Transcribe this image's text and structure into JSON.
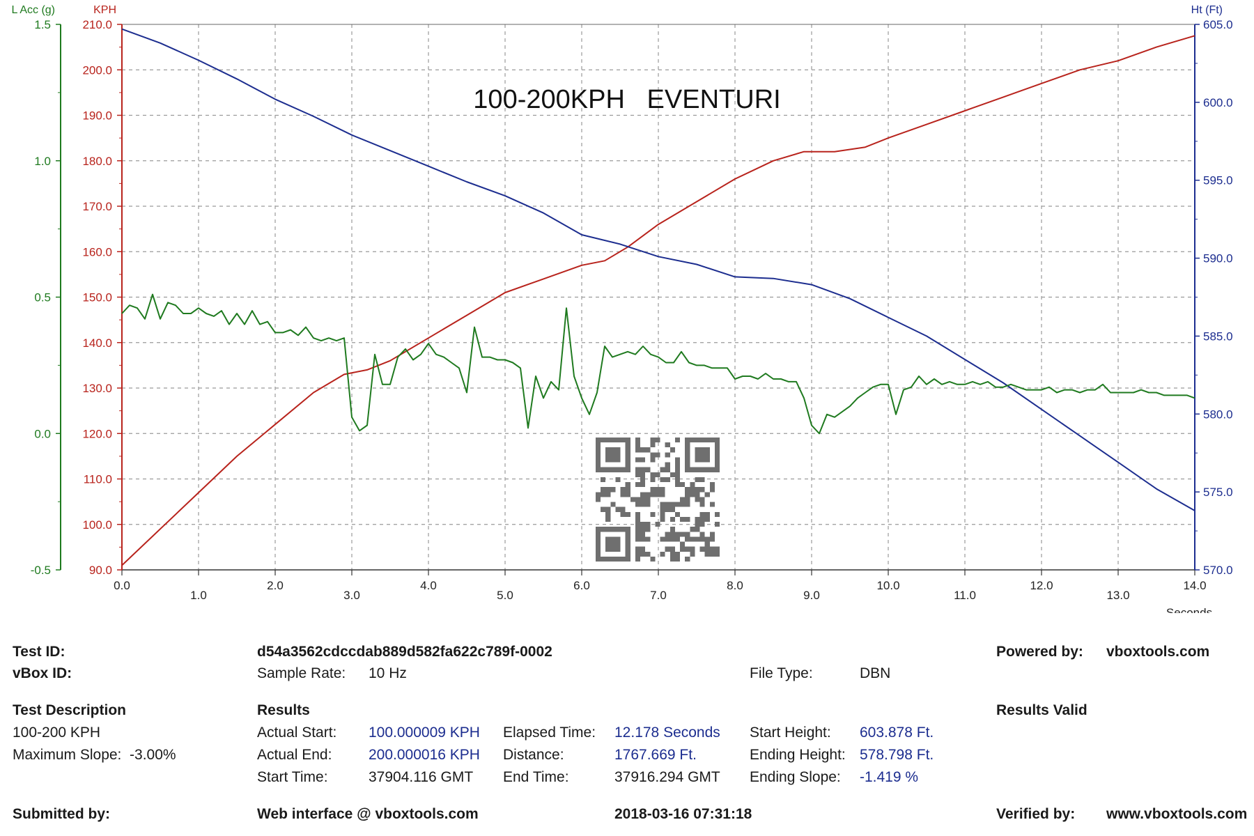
{
  "chart_data": {
    "type": "line",
    "title": "100-200KPH   EVENTURI",
    "xlabel": "Seconds",
    "xlim": [
      0,
      14
    ],
    "x_ticks": [
      "0.0",
      "1.0",
      "2.0",
      "3.0",
      "4.0",
      "5.0",
      "6.0",
      "7.0",
      "8.0",
      "9.0",
      "10.0",
      "11.0",
      "12.0",
      "13.0",
      "14.0"
    ],
    "grid": true,
    "axes": [
      {
        "id": "lacc",
        "label": "L Acc (g)",
        "side": "left-outer",
        "color": "#1f7a1f",
        "range": [
          -0.5,
          1.5
        ],
        "ticks": [
          "-0.5",
          "0.0",
          "0.5",
          "1.0",
          "1.5"
        ]
      },
      {
        "id": "kph",
        "label": "KPH",
        "side": "left-inner",
        "color": "#b8231c",
        "range": [
          90,
          210
        ],
        "ticks": [
          "90.0",
          "100.0",
          "110.0",
          "120.0",
          "130.0",
          "140.0",
          "150.0",
          "160.0",
          "170.0",
          "180.0",
          "190.0",
          "200.0",
          "210.0"
        ]
      },
      {
        "id": "ht",
        "label": "Ht (Ft)",
        "side": "right",
        "color": "#1c2d8f",
        "range": [
          570,
          605
        ],
        "ticks": [
          "570.0",
          "575.0",
          "580.0",
          "585.0",
          "590.0",
          "595.0",
          "600.0",
          "605.0"
        ]
      }
    ],
    "series": [
      {
        "axis": "kph",
        "color": "#b8231c",
        "x": [
          0,
          0.5,
          1,
          1.5,
          2,
          2.5,
          2.9,
          3.2,
          3.5,
          4,
          4.5,
          5,
          5.5,
          6,
          6.3,
          6.6,
          7,
          7.5,
          8,
          8.5,
          8.9,
          9.3,
          9.7,
          10,
          10.5,
          11,
          11.5,
          12,
          12.5,
          13,
          13.5,
          14
        ],
        "values": [
          91,
          99,
          107,
          115,
          122,
          129,
          133,
          134,
          136,
          141,
          146,
          151,
          154,
          157,
          158,
          161,
          166,
          171,
          176,
          180,
          182,
          182,
          183,
          185,
          188,
          191,
          194,
          197,
          200,
          202,
          205,
          207.5
        ]
      },
      {
        "axis": "ht",
        "color": "#1c2d8f",
        "x": [
          0,
          0.5,
          1,
          1.5,
          2,
          2.5,
          3,
          3.5,
          4,
          4.5,
          5,
          5.5,
          6,
          6.5,
          7,
          7.5,
          8,
          8.5,
          9,
          9.5,
          10,
          10.5,
          11,
          11.5,
          12,
          12.5,
          13,
          13.5,
          14
        ],
        "values": [
          604.7,
          603.8,
          602.7,
          601.5,
          600.2,
          599.1,
          597.9,
          596.9,
          595.9,
          594.9,
          594.0,
          592.9,
          591.5,
          590.9,
          590.1,
          589.6,
          588.8,
          588.7,
          588.3,
          587.4,
          586.2,
          585.0,
          583.5,
          582.0,
          580.3,
          578.6,
          576.9,
          575.2,
          573.8
        ]
      },
      {
        "axis": "lacc",
        "color": "#1f7a1f",
        "x": [
          0,
          0.1,
          0.2,
          0.3,
          0.4,
          0.5,
          0.6,
          0.7,
          0.8,
          0.9,
          1.0,
          1.1,
          1.2,
          1.3,
          1.4,
          1.5,
          1.6,
          1.7,
          1.8,
          1.9,
          2.0,
          2.1,
          2.2,
          2.3,
          2.4,
          2.5,
          2.6,
          2.7,
          2.8,
          2.9,
          3.0,
          3.1,
          3.2,
          3.3,
          3.4,
          3.5,
          3.6,
          3.7,
          3.8,
          3.9,
          4.0,
          4.1,
          4.2,
          4.3,
          4.4,
          4.5,
          4.6,
          4.7,
          4.8,
          4.9,
          5.0,
          5.1,
          5.2,
          5.3,
          5.4,
          5.5,
          5.6,
          5.7,
          5.8,
          5.9,
          6.0,
          6.1,
          6.2,
          6.3,
          6.4,
          6.5,
          6.6,
          6.7,
          6.8,
          6.9,
          7.0,
          7.1,
          7.2,
          7.3,
          7.4,
          7.5,
          7.6,
          7.7,
          7.8,
          7.9,
          8.0,
          8.1,
          8.2,
          8.3,
          8.4,
          8.5,
          8.6,
          8.7,
          8.8,
          8.9,
          9.0,
          9.1,
          9.2,
          9.3,
          9.4,
          9.5,
          9.6,
          9.7,
          9.8,
          9.9,
          10.0,
          10.1,
          10.2,
          10.3,
          10.4,
          10.5,
          10.6,
          10.7,
          10.8,
          10.9,
          11.0,
          11.1,
          11.2,
          11.3,
          11.4,
          11.5,
          11.6,
          11.7,
          11.8,
          11.9,
          12.0,
          12.1,
          12.2,
          12.3,
          12.4,
          12.5,
          12.6,
          12.7,
          12.8,
          12.9,
          13.0,
          13.1,
          13.2,
          13.3,
          13.4,
          13.5,
          13.6,
          13.7,
          13.8,
          13.9,
          14.0
        ],
        "values": [
          0.44,
          0.47,
          0.46,
          0.42,
          0.51,
          0.42,
          0.48,
          0.47,
          0.44,
          0.44,
          0.46,
          0.44,
          0.43,
          0.45,
          0.4,
          0.44,
          0.4,
          0.45,
          0.4,
          0.41,
          0.37,
          0.37,
          0.38,
          0.36,
          0.39,
          0.35,
          0.34,
          0.35,
          0.34,
          0.35,
          0.06,
          0.01,
          0.03,
          0.29,
          0.18,
          0.18,
          0.28,
          0.31,
          0.27,
          0.29,
          0.33,
          0.29,
          0.28,
          0.26,
          0.24,
          0.15,
          0.39,
          0.28,
          0.28,
          0.27,
          0.27,
          0.26,
          0.24,
          0.02,
          0.21,
          0.13,
          0.19,
          0.16,
          0.46,
          0.21,
          0.13,
          0.07,
          0.15,
          0.32,
          0.28,
          0.29,
          0.3,
          0.29,
          0.32,
          0.29,
          0.28,
          0.26,
          0.26,
          0.3,
          0.26,
          0.25,
          0.25,
          0.24,
          0.24,
          0.24,
          0.2,
          0.21,
          0.21,
          0.2,
          0.22,
          0.2,
          0.2,
          0.19,
          0.19,
          0.13,
          0.03,
          0.0,
          0.07,
          0.06,
          0.08,
          0.1,
          0.13,
          0.15,
          0.17,
          0.18,
          0.18,
          0.07,
          0.16,
          0.17,
          0.21,
          0.18,
          0.2,
          0.18,
          0.19,
          0.18,
          0.18,
          0.19,
          0.18,
          0.19,
          0.17,
          0.17,
          0.18,
          0.17,
          0.16,
          0.16,
          0.16,
          0.17,
          0.15,
          0.16,
          0.16,
          0.15,
          0.16,
          0.16,
          0.18,
          0.15,
          0.15,
          0.15,
          0.15,
          0.16,
          0.15,
          0.15,
          0.14,
          0.14,
          0.14,
          0.14,
          0.13
        ]
      }
    ]
  },
  "info": {
    "test_id_label": "Test ID:",
    "test_id_value": "d54a3562cdccdab889d582fa622c789f-0002",
    "powered_label": "Powered by:",
    "powered_value": "vboxtools.com",
    "vbox_id_label": "vBox ID:",
    "sample_rate_label": "Sample Rate:",
    "sample_rate_value": "10 Hz",
    "file_type_label": "File Type:",
    "file_type_value": "DBN",
    "test_desc_label": "Test Description",
    "test_desc_value": "100-200 KPH",
    "max_slope": "Maximum Slope:  -3.00%",
    "results_label": "Results",
    "results_valid": "Results Valid",
    "actual_start_label": "Actual Start:",
    "actual_start_value": "100.000009 KPH",
    "elapsed_label": "Elapsed Time:",
    "elapsed_value": "12.178 Seconds",
    "start_height_label": "Start Height:",
    "start_height_value": "603.878 Ft.",
    "actual_end_label": "Actual End:",
    "actual_end_value": "200.000016 KPH",
    "distance_label": "Distance:",
    "distance_value": "1767.669 Ft.",
    "ending_height_label": "Ending Height:",
    "ending_height_value": "578.798 Ft.",
    "start_time_label": "Start Time:",
    "start_time_value": "37904.116 GMT",
    "end_time_label": "End Time:",
    "end_time_value": "37916.294 GMT",
    "ending_slope_label": "Ending Slope:",
    "ending_slope_value": "-1.419 %",
    "submitted_label": "Submitted by:",
    "web_interface": "Web interface @ vboxtools.com",
    "timestamp": "2018-03-16 07:31:18",
    "verified_label": "Verified by:",
    "verified_value": "www.vboxtools.com"
  }
}
